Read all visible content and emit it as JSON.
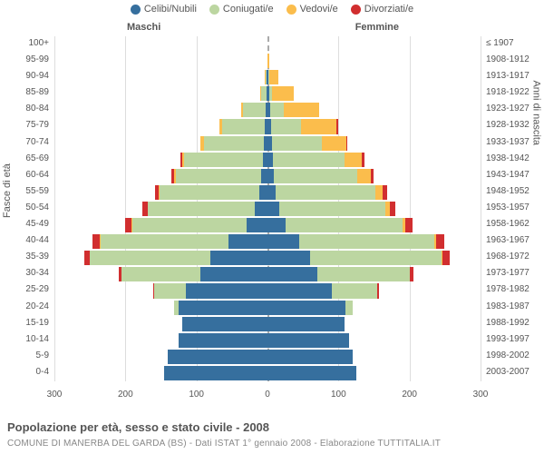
{
  "type": "population-pyramid",
  "title": "Popolazione per età, sesso e stato civile - 2008",
  "subtitle": "COMUNE DI MANERBA DEL GARDA (BS) - Dati ISTAT 1° gennaio 2008 - Elaborazione TUTTITALIA.IT",
  "legend": [
    {
      "label": "Celibi/Nubili",
      "color": "#366f9e"
    },
    {
      "label": "Coniugati/e",
      "color": "#bcd6a1"
    },
    {
      "label": "Vedovi/e",
      "color": "#fbbd4c"
    },
    {
      "label": "Divorziati/e",
      "color": "#d12e2f"
    }
  ],
  "sides": {
    "left": "Maschi",
    "right": "Femmine"
  },
  "y_axis_left": "Fasce di età",
  "y_axis_right": "Anni di nascita",
  "x_axis": {
    "max": 300,
    "ticks": [
      300,
      200,
      100,
      0,
      100,
      200,
      300
    ]
  },
  "chart_style": {
    "background_color": "#ffffff",
    "grid_color": "#dddddd",
    "centerline_color": "#aaaaaa",
    "label_color": "#555555",
    "label_fontsize": 10,
    "legend_fontsize": 11,
    "bar_gap": 2
  },
  "rows": [
    {
      "age": "100+",
      "year": "≤ 1907",
      "m": [
        0,
        0,
        0,
        0
      ],
      "f": [
        0,
        0,
        0,
        0
      ]
    },
    {
      "age": "95-99",
      "year": "1908-1912",
      "m": [
        0,
        0,
        0,
        0
      ],
      "f": [
        0,
        0,
        3,
        0
      ]
    },
    {
      "age": "90-94",
      "year": "1913-1917",
      "m": [
        1,
        1,
        2,
        0
      ],
      "f": [
        1,
        1,
        13,
        0
      ]
    },
    {
      "age": "85-89",
      "year": "1918-1922",
      "m": [
        1,
        8,
        1,
        0
      ],
      "f": [
        2,
        5,
        30,
        0
      ]
    },
    {
      "age": "80-84",
      "year": "1923-1927",
      "m": [
        3,
        32,
        2,
        0
      ],
      "f": [
        4,
        19,
        50,
        0
      ]
    },
    {
      "age": "75-79",
      "year": "1928-1932",
      "m": [
        4,
        60,
        4,
        0
      ],
      "f": [
        5,
        42,
        50,
        2
      ]
    },
    {
      "age": "70-74",
      "year": "1933-1937",
      "m": [
        5,
        85,
        4,
        1
      ],
      "f": [
        6,
        70,
        35,
        2
      ]
    },
    {
      "age": "65-69",
      "year": "1938-1942",
      "m": [
        7,
        110,
        3,
        2
      ],
      "f": [
        8,
        100,
        25,
        4
      ]
    },
    {
      "age": "60-64",
      "year": "1943-1947",
      "m": [
        9,
        120,
        2,
        4
      ],
      "f": [
        9,
        118,
        18,
        5
      ]
    },
    {
      "age": "55-59",
      "year": "1948-1952",
      "m": [
        12,
        140,
        1,
        5
      ],
      "f": [
        12,
        140,
        10,
        6
      ]
    },
    {
      "age": "50-54",
      "year": "1953-1957",
      "m": [
        18,
        150,
        1,
        7
      ],
      "f": [
        16,
        150,
        6,
        8
      ]
    },
    {
      "age": "45-49",
      "year": "1958-1962",
      "m": [
        30,
        160,
        1,
        9
      ],
      "f": [
        25,
        165,
        4,
        10
      ]
    },
    {
      "age": "40-44",
      "year": "1963-1967",
      "m": [
        55,
        180,
        1,
        10
      ],
      "f": [
        45,
        190,
        2,
        12
      ]
    },
    {
      "age": "35-39",
      "year": "1968-1972",
      "m": [
        80,
        170,
        0,
        8
      ],
      "f": [
        60,
        185,
        1,
        10
      ]
    },
    {
      "age": "30-34",
      "year": "1973-1977",
      "m": [
        95,
        110,
        0,
        4
      ],
      "f": [
        70,
        130,
        0,
        5
      ]
    },
    {
      "age": "25-29",
      "year": "1978-1982",
      "m": [
        115,
        45,
        0,
        1
      ],
      "f": [
        90,
        65,
        0,
        2
      ]
    },
    {
      "age": "20-24",
      "year": "1983-1987",
      "m": [
        125,
        6,
        0,
        0
      ],
      "f": [
        110,
        10,
        0,
        0
      ]
    },
    {
      "age": "15-19",
      "year": "1988-1992",
      "m": [
        120,
        0,
        0,
        0
      ],
      "f": [
        108,
        0,
        0,
        0
      ]
    },
    {
      "age": "10-14",
      "year": "1993-1997",
      "m": [
        125,
        0,
        0,
        0
      ],
      "f": [
        115,
        0,
        0,
        0
      ]
    },
    {
      "age": "5-9",
      "year": "1998-2002",
      "m": [
        140,
        0,
        0,
        0
      ],
      "f": [
        120,
        0,
        0,
        0
      ]
    },
    {
      "age": "0-4",
      "year": "2003-2007",
      "m": [
        145,
        0,
        0,
        0
      ],
      "f": [
        125,
        0,
        0,
        0
      ]
    }
  ]
}
